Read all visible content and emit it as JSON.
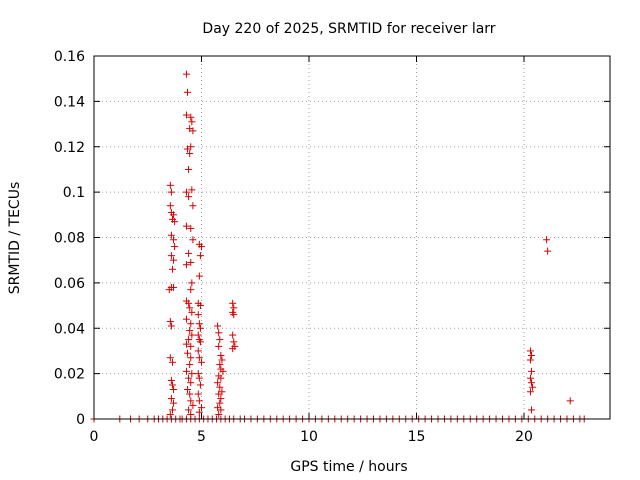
{
  "chart_data": {
    "type": "scatter",
    "title": "Day 220 of 2025, SRMTID for receiver larr",
    "xlabel": "GPS time / hours",
    "ylabel": "SRMTID / TECUs",
    "xlim": [
      0,
      24
    ],
    "ylim": [
      0,
      0.16
    ],
    "xticks": [
      0,
      5,
      10,
      15,
      20
    ],
    "xtick_labels": [
      "0",
      "5",
      "10",
      "15",
      "20"
    ],
    "yticks": [
      0,
      0.02,
      0.04,
      0.06,
      0.08,
      0.1,
      0.12,
      0.14,
      0.16
    ],
    "ytick_labels": [
      "0",
      "0.02",
      "0.04",
      "0.06",
      "0.08",
      "0.1",
      "0.12",
      "0.14",
      "0.16"
    ],
    "grid": true,
    "marker": "+",
    "marker_color": "#d40000",
    "series": [
      {
        "points": [
          [
            0.0,
            0.0
          ],
          [
            1.2,
            0.0
          ],
          [
            1.7,
            0.0
          ],
          [
            2.1,
            0.0
          ],
          [
            2.5,
            0.0
          ],
          [
            2.8,
            0.0
          ],
          [
            3.0,
            0.0
          ],
          [
            3.2,
            0.0
          ],
          [
            3.4,
            0.0
          ],
          [
            3.6,
            0.0
          ],
          [
            3.8,
            0.0
          ],
          [
            4.0,
            0.0
          ],
          [
            4.1,
            0.0
          ],
          [
            4.3,
            0.0
          ],
          [
            4.5,
            0.0
          ],
          [
            4.7,
            0.0
          ],
          [
            4.9,
            0.0
          ],
          [
            5.1,
            0.0
          ],
          [
            5.3,
            0.0
          ],
          [
            5.5,
            0.0
          ],
          [
            5.7,
            0.0
          ],
          [
            5.9,
            0.0
          ],
          [
            6.1,
            0.0
          ],
          [
            6.3,
            0.0
          ],
          [
            6.5,
            0.0
          ],
          [
            6.8,
            0.0
          ],
          [
            7.0,
            0.0
          ],
          [
            7.3,
            0.0
          ],
          [
            7.6,
            0.0
          ],
          [
            7.9,
            0.0
          ],
          [
            8.2,
            0.0
          ],
          [
            8.5,
            0.0
          ],
          [
            8.8,
            0.0
          ],
          [
            9.1,
            0.0
          ],
          [
            9.4,
            0.0
          ],
          [
            9.7,
            0.0
          ],
          [
            10.0,
            0.0
          ],
          [
            10.3,
            0.0
          ],
          [
            10.6,
            0.0
          ],
          [
            10.9,
            0.0
          ],
          [
            11.2,
            0.0
          ],
          [
            11.5,
            0.0
          ],
          [
            11.8,
            0.0
          ],
          [
            12.1,
            0.0
          ],
          [
            12.4,
            0.0
          ],
          [
            12.7,
            0.0
          ],
          [
            13.0,
            0.0
          ],
          [
            13.3,
            0.0
          ],
          [
            13.6,
            0.0
          ],
          [
            13.9,
            0.0
          ],
          [
            14.2,
            0.0
          ],
          [
            14.5,
            0.0
          ],
          [
            14.8,
            0.0
          ],
          [
            15.1,
            0.0
          ],
          [
            15.4,
            0.0
          ],
          [
            15.7,
            0.0
          ],
          [
            16.0,
            0.0
          ],
          [
            16.3,
            0.0
          ],
          [
            16.6,
            0.0
          ],
          [
            16.9,
            0.0
          ],
          [
            17.2,
            0.0
          ],
          [
            17.5,
            0.0
          ],
          [
            17.8,
            0.0
          ],
          [
            18.1,
            0.0
          ],
          [
            18.4,
            0.0
          ],
          [
            18.7,
            0.0
          ],
          [
            19.0,
            0.0
          ],
          [
            19.3,
            0.0
          ],
          [
            19.6,
            0.0
          ],
          [
            19.9,
            0.0
          ],
          [
            20.2,
            0.0
          ],
          [
            20.5,
            0.0
          ],
          [
            20.8,
            0.0
          ],
          [
            21.1,
            0.0
          ],
          [
            21.4,
            0.0
          ],
          [
            21.7,
            0.0
          ],
          [
            22.0,
            0.0
          ],
          [
            22.3,
            0.0
          ],
          [
            22.6,
            0.0
          ],
          [
            22.8,
            0.0
          ],
          [
            3.55,
            0.103
          ],
          [
            3.6,
            0.1
          ],
          [
            3.55,
            0.094
          ],
          [
            3.6,
            0.091
          ],
          [
            3.65,
            0.088
          ],
          [
            3.7,
            0.09
          ],
          [
            3.75,
            0.087
          ],
          [
            3.6,
            0.081
          ],
          [
            3.7,
            0.079
          ],
          [
            3.75,
            0.076
          ],
          [
            3.6,
            0.072
          ],
          [
            3.7,
            0.07
          ],
          [
            3.65,
            0.066
          ],
          [
            3.5,
            0.057
          ],
          [
            3.6,
            0.058
          ],
          [
            3.7,
            0.058
          ],
          [
            3.55,
            0.043
          ],
          [
            3.6,
            0.041
          ],
          [
            3.55,
            0.027
          ],
          [
            3.65,
            0.025
          ],
          [
            3.6,
            0.017
          ],
          [
            3.65,
            0.015
          ],
          [
            3.7,
            0.013
          ],
          [
            3.6,
            0.009
          ],
          [
            3.7,
            0.007
          ],
          [
            3.65,
            0.004
          ],
          [
            3.55,
            0.002
          ],
          [
            4.3,
            0.152
          ],
          [
            4.35,
            0.144
          ],
          [
            4.3,
            0.134
          ],
          [
            4.5,
            0.133
          ],
          [
            4.55,
            0.131
          ],
          [
            4.45,
            0.128
          ],
          [
            4.6,
            0.127
          ],
          [
            4.35,
            0.119
          ],
          [
            4.45,
            0.117
          ],
          [
            4.5,
            0.12
          ],
          [
            4.4,
            0.11
          ],
          [
            4.3,
            0.1
          ],
          [
            4.4,
            0.098
          ],
          [
            4.55,
            0.101
          ],
          [
            4.6,
            0.094
          ],
          [
            4.3,
            0.085
          ],
          [
            4.5,
            0.084
          ],
          [
            4.6,
            0.079
          ],
          [
            4.4,
            0.073
          ],
          [
            4.3,
            0.068
          ],
          [
            4.5,
            0.069
          ],
          [
            4.55,
            0.06
          ],
          [
            4.5,
            0.057
          ],
          [
            4.3,
            0.052
          ],
          [
            4.4,
            0.051
          ],
          [
            4.45,
            0.049
          ],
          [
            4.55,
            0.047
          ],
          [
            4.3,
            0.044
          ],
          [
            4.5,
            0.042
          ],
          [
            4.45,
            0.039
          ],
          [
            4.55,
            0.037
          ],
          [
            4.4,
            0.035
          ],
          [
            4.3,
            0.033
          ],
          [
            4.5,
            0.032
          ],
          [
            4.35,
            0.029
          ],
          [
            4.5,
            0.027
          ],
          [
            4.45,
            0.024
          ],
          [
            4.3,
            0.021
          ],
          [
            4.55,
            0.02
          ],
          [
            4.4,
            0.018
          ],
          [
            4.5,
            0.016
          ],
          [
            4.35,
            0.013
          ],
          [
            4.45,
            0.011
          ],
          [
            4.5,
            0.008
          ],
          [
            4.6,
            0.006
          ],
          [
            4.4,
            0.004
          ],
          [
            4.5,
            0.002
          ],
          [
            4.9,
            0.077
          ],
          [
            5.0,
            0.076
          ],
          [
            4.95,
            0.072
          ],
          [
            4.9,
            0.063
          ],
          [
            4.85,
            0.051
          ],
          [
            4.95,
            0.05
          ],
          [
            4.85,
            0.046
          ],
          [
            4.9,
            0.042
          ],
          [
            4.95,
            0.04
          ],
          [
            4.85,
            0.037
          ],
          [
            4.9,
            0.035
          ],
          [
            4.95,
            0.034
          ],
          [
            4.85,
            0.03
          ],
          [
            4.9,
            0.027
          ],
          [
            5.0,
            0.025
          ],
          [
            4.85,
            0.02
          ],
          [
            4.9,
            0.018
          ],
          [
            4.95,
            0.015
          ],
          [
            4.85,
            0.011
          ],
          [
            4.9,
            0.008
          ],
          [
            5.0,
            0.005
          ],
          [
            4.9,
            0.003
          ],
          [
            5.75,
            0.041
          ],
          [
            5.8,
            0.038
          ],
          [
            5.85,
            0.035
          ],
          [
            5.8,
            0.032
          ],
          [
            5.9,
            0.028
          ],
          [
            5.95,
            0.026
          ],
          [
            5.85,
            0.024
          ],
          [
            5.9,
            0.022
          ],
          [
            6.0,
            0.021
          ],
          [
            5.8,
            0.019
          ],
          [
            5.9,
            0.018
          ],
          [
            5.75,
            0.016
          ],
          [
            5.85,
            0.014
          ],
          [
            5.95,
            0.012
          ],
          [
            5.8,
            0.011
          ],
          [
            5.9,
            0.009
          ],
          [
            5.85,
            0.007
          ],
          [
            5.75,
            0.005
          ],
          [
            5.9,
            0.004
          ],
          [
            5.8,
            0.002
          ],
          [
            6.45,
            0.051
          ],
          [
            6.5,
            0.049
          ],
          [
            6.45,
            0.047
          ],
          [
            6.5,
            0.046
          ],
          [
            6.45,
            0.037
          ],
          [
            6.5,
            0.034
          ],
          [
            6.55,
            0.032
          ],
          [
            6.45,
            0.031
          ],
          [
            20.3,
            0.03
          ],
          [
            20.35,
            0.028
          ],
          [
            20.3,
            0.026
          ],
          [
            20.35,
            0.021
          ],
          [
            20.3,
            0.018
          ],
          [
            20.35,
            0.016
          ],
          [
            20.4,
            0.014
          ],
          [
            20.3,
            0.012
          ],
          [
            20.35,
            0.004
          ],
          [
            21.05,
            0.079
          ],
          [
            21.1,
            0.074
          ],
          [
            22.15,
            0.008
          ]
        ]
      }
    ]
  }
}
